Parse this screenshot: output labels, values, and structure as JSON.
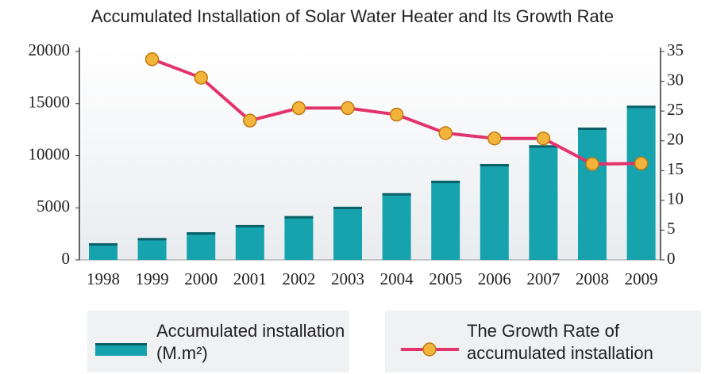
{
  "chart_data": {
    "type": "bar-line",
    "title": "Accumulated Installation of Solar Water Heater and Its Growth Rate",
    "categories": [
      "1998",
      "1999",
      "2000",
      "2001",
      "2002",
      "2003",
      "2004",
      "2005",
      "2006",
      "2007",
      "2008",
      "2009"
    ],
    "series": [
      {
        "name": "Accumulated installation (M.m²)",
        "type": "bar",
        "color": "#17a3ad",
        "values": [
          1600,
          2100,
          2650,
          3350,
          4200,
          5100,
          6400,
          7600,
          9200,
          11000,
          12700,
          14800
        ]
      },
      {
        "name": "The Growth Rate of accumulated installation",
        "type": "line",
        "axis": "y2",
        "color": "#e2336c",
        "marker_color": "#f2b43a",
        "values": [
          null,
          33.7,
          30.6,
          23.4,
          25.5,
          25.5,
          24.4,
          21.3,
          20.4,
          20.4,
          16.1,
          16.2
        ]
      }
    ],
    "ylim": [
      0,
      20000
    ],
    "yticks": [
      0,
      5000,
      10000,
      15000,
      20000
    ],
    "y2lim": [
      0,
      35
    ],
    "y2ticks": [
      0,
      5,
      10,
      15,
      20,
      25,
      30,
      35
    ],
    "grid": false,
    "legend": "bottom"
  }
}
